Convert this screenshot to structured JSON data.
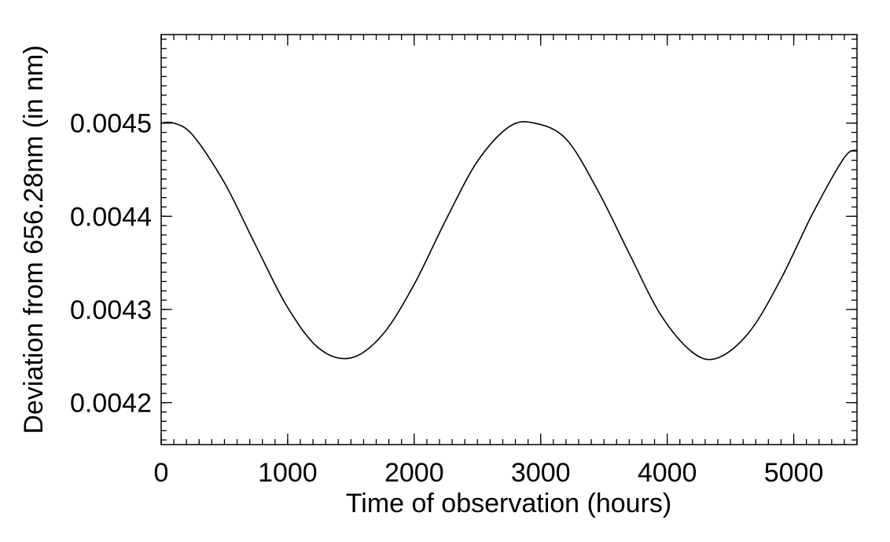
{
  "chart_data": {
    "type": "line",
    "title": "",
    "xlabel": "Time of observation (hours)",
    "ylabel": "Deviation from 656.28nm (in nm)",
    "xlim": [
      0,
      5500
    ],
    "ylim": [
      0.004155,
      0.004595
    ],
    "x_ticks": [
      0,
      1000,
      2000,
      3000,
      4000,
      5000
    ],
    "x_tick_labels": [
      "0",
      "1000",
      "2000",
      "3000",
      "4000",
      "5000"
    ],
    "y_ticks": [
      0.0042,
      0.0043,
      0.0044,
      0.0045
    ],
    "y_tick_labels": [
      "0.0042",
      "0.0043",
      "0.0044",
      "0.0045"
    ],
    "grid": false,
    "legend": "none",
    "line_color": "#000000",
    "series": [
      {
        "x": [
          0,
          100,
          250,
          500,
          750,
          1000,
          1250,
          1500,
          1750,
          2000,
          2250,
          2500,
          2750,
          2950,
          3200,
          3450,
          3700,
          3950,
          4200,
          4400,
          4650,
          4900,
          5150,
          5400,
          5500
        ],
        "values": [
          0.0045,
          0.0045,
          0.004487,
          0.004436,
          0.004368,
          0.004302,
          0.004258,
          0.004248,
          0.004273,
          0.004327,
          0.004396,
          0.004459,
          0.004496,
          0.0045,
          0.004483,
          0.004428,
          0.00436,
          0.004294,
          0.004254,
          0.004248,
          0.004276,
          0.004333,
          0.004403,
          0.004463,
          0.004471
        ]
      }
    ]
  }
}
